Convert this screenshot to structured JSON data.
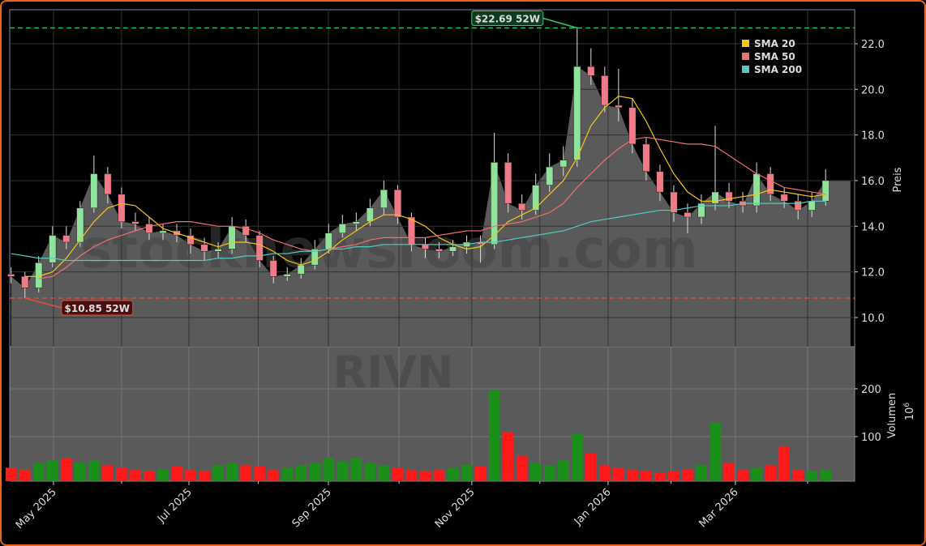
{
  "chart_data": {
    "type": "candlestick",
    "watermarks": [
      "stocknewsroom.com",
      "RIVN"
    ],
    "y_label": "Preis",
    "y2_label": "Volumen",
    "y2_scale": {
      "base": "10",
      "exponent": "6"
    },
    "categories": [
      null,
      null,
      null,
      null,
      null,
      null,
      null,
      null,
      null,
      null,
      null,
      null,
      null,
      null,
      null,
      null,
      null,
      null,
      null,
      null,
      null,
      null,
      null,
      null,
      null,
      null,
      null,
      null,
      null,
      null,
      null,
      null,
      null,
      null,
      null,
      null,
      null,
      null,
      null,
      null,
      null,
      null,
      null,
      null,
      null,
      null,
      null,
      null,
      null,
      null,
      null,
      null,
      null,
      null,
      null,
      null,
      null,
      null,
      null,
      null
    ],
    "xlim": [
      -0.1,
      61.1
    ],
    "xticks": [
      {
        "value": 3.07,
        "label": "May 2025"
      },
      {
        "value": 12.88,
        "label": "Jul 2025"
      },
      {
        "value": 22.98,
        "label": "Sep 2025"
      },
      {
        "value": 33.37,
        "label": "Nov 2025"
      },
      {
        "value": 43.24,
        "label": "Jan 2026"
      },
      {
        "value": 52.46,
        "label": "Mar 2026"
      }
    ],
    "xminorticks": [
      8.0,
      17.9,
      28.1,
      38.3,
      47.8,
      57.7
    ],
    "ylim": [
      8.72,
      23.49
    ],
    "yticks": [
      {
        "value": 10,
        "label": "10.0"
      },
      {
        "value": 12,
        "label": "12.0"
      },
      {
        "value": 14,
        "label": "14.0"
      },
      {
        "value": 16,
        "label": "16.0"
      },
      {
        "value": 18,
        "label": "18.0"
      },
      {
        "value": 20,
        "label": "20.0"
      },
      {
        "value": 22,
        "label": "22.0"
      }
    ],
    "y2lim": [
      6.8,
      288
    ],
    "y2ticks": [
      100,
      200
    ],
    "grid": true,
    "open": [
      11.9,
      11.8,
      11.3,
      12.4,
      13.6,
      13.3,
      14.8,
      16.3,
      15.4,
      14.2,
      14.1,
      13.7,
      13.8,
      13.6,
      13.2,
      12.9,
      13.0,
      14.0,
      13.6,
      12.5,
      11.8,
      11.9,
      12.3,
      13.0,
      13.7,
      14.1,
      14.2,
      14.8,
      15.6,
      14.4,
      13.2,
      13.0,
      12.9,
      13.1,
      13.3,
      13.2,
      16.8,
      15.0,
      14.7,
      15.8,
      16.6,
      16.9,
      21.0,
      20.6,
      19.3,
      19.2,
      17.6,
      16.4,
      15.5,
      14.6,
      14.4,
      15.0,
      15.5,
      15.1,
      14.9,
      16.3,
      15.4,
      15.1,
      14.7,
      15.1
    ],
    "high": [
      12.2,
      12.0,
      12.7,
      14.0,
      14.0,
      15.1,
      17.1,
      16.6,
      15.7,
      14.6,
      14.4,
      14.1,
      14.1,
      13.9,
      13.5,
      13.3,
      14.4,
      14.3,
      13.8,
      12.7,
      12.2,
      12.6,
      13.4,
      14.1,
      14.5,
      14.6,
      15.2,
      16.0,
      15.8,
      14.6,
      13.5,
      13.3,
      13.4,
      13.6,
      13.6,
      18.1,
      17.2,
      15.4,
      16.3,
      17.2,
      17.5,
      22.69,
      21.8,
      21.0,
      20.9,
      19.6,
      17.9,
      16.7,
      15.8,
      15.0,
      15.4,
      18.4,
      15.9,
      15.5,
      16.8,
      16.6,
      15.7,
      15.4,
      15.5,
      16.5
    ],
    "low": [
      11.5,
      10.85,
      11.1,
      12.2,
      13.0,
      13.1,
      14.6,
      15.0,
      13.9,
      13.8,
      13.4,
      13.4,
      13.3,
      12.8,
      12.5,
      12.6,
      12.8,
      13.3,
      12.2,
      11.5,
      11.6,
      11.7,
      12.1,
      12.8,
      13.5,
      13.8,
      14.0,
      14.5,
      14.1,
      12.9,
      12.6,
      12.6,
      12.7,
      12.8,
      12.4,
      13.0,
      14.6,
      14.3,
      14.5,
      15.5,
      16.2,
      16.6,
      20.2,
      19.0,
      18.6,
      17.2,
      16.0,
      15.1,
      14.2,
      13.7,
      14.1,
      14.7,
      14.8,
      14.6,
      14.6,
      15.1,
      14.8,
      14.3,
      14.4,
      14.9
    ],
    "close": [
      11.8,
      11.3,
      12.4,
      13.6,
      13.3,
      14.8,
      16.3,
      15.4,
      14.2,
      14.1,
      13.7,
      13.8,
      13.6,
      13.2,
      12.9,
      13.0,
      14.0,
      13.6,
      12.5,
      11.8,
      11.9,
      12.3,
      13.0,
      13.7,
      14.1,
      14.2,
      14.8,
      15.6,
      14.4,
      13.2,
      13.0,
      12.9,
      13.1,
      13.3,
      13.2,
      16.8,
      15.0,
      14.7,
      15.8,
      16.6,
      16.9,
      21.0,
      20.6,
      19.3,
      19.2,
      17.6,
      16.4,
      15.5,
      14.6,
      14.4,
      15.0,
      15.5,
      15.1,
      14.9,
      16.3,
      15.4,
      15.1,
      14.7,
      15.1,
      16.0
    ],
    "volume": [
      35,
      30,
      45,
      50,
      55,
      45,
      50,
      40,
      35,
      30,
      28,
      32,
      38,
      30,
      28,
      40,
      45,
      40,
      38,
      30,
      35,
      40,
      45,
      55,
      48,
      55,
      45,
      40,
      35,
      30,
      28,
      30,
      35,
      40,
      38,
      198,
      110,
      60,
      45,
      40,
      50,
      105,
      65,
      40,
      35,
      30,
      28,
      25,
      28,
      32,
      40,
      130,
      45,
      30,
      35,
      40,
      80,
      30,
      28,
      30
    ],
    "candle_up_color": "#8fe39a",
    "candle_down_color": "#f07a86",
    "volume_up_color": "#1a8f1a",
    "volume_down_color": "#ff1a1a",
    "area_color": "#5a5a5a",
    "series": [
      {
        "name": "SMA 20",
        "color": "#f5c518",
        "values": [
          null,
          11.8,
          11.8,
          12.0,
          12.6,
          13.4,
          14.2,
          14.8,
          15.0,
          14.9,
          14.4,
          13.9,
          13.7,
          13.5,
          13.3,
          13.1,
          13.3,
          13.3,
          13.2,
          12.9,
          12.5,
          12.3,
          12.5,
          12.9,
          13.4,
          13.8,
          14.2,
          14.5,
          14.5,
          14.3,
          14.0,
          13.5,
          13.2,
          13.0,
          13.1,
          13.6,
          14.2,
          14.5,
          14.8,
          15.4,
          16.0,
          17.0,
          18.4,
          19.2,
          19.7,
          19.6,
          18.6,
          17.4,
          16.3,
          15.5,
          15.1,
          15.1,
          15.2,
          15.3,
          15.4,
          15.6,
          15.5,
          15.4,
          15.3,
          15.4
        ]
      },
      {
        "name": "SMA 50",
        "color": "#f07070",
        "values": [
          null,
          null,
          11.7,
          11.8,
          12.2,
          12.7,
          13.1,
          13.4,
          13.6,
          13.8,
          14.0,
          14.1,
          14.2,
          14.2,
          14.1,
          14.0,
          14.0,
          13.9,
          13.7,
          13.4,
          13.2,
          13.0,
          12.9,
          13.0,
          13.1,
          13.2,
          13.4,
          13.5,
          13.5,
          13.5,
          13.5,
          13.6,
          13.7,
          13.8,
          13.8,
          14.0,
          14.1,
          14.2,
          14.4,
          14.6,
          15.0,
          15.7,
          16.3,
          16.9,
          17.4,
          17.8,
          17.9,
          17.8,
          17.7,
          17.6,
          17.6,
          17.5,
          17.1,
          16.7,
          16.3,
          16.0,
          15.7,
          15.6,
          15.5,
          15.4
        ]
      },
      {
        "name": "SMA 200",
        "color": "#4ecdc4",
        "values": [
          12.8,
          12.7,
          12.6,
          12.6,
          12.5,
          12.5,
          12.5,
          12.5,
          12.5,
          12.5,
          12.5,
          12.5,
          12.5,
          12.5,
          12.5,
          12.6,
          12.6,
          12.7,
          12.7,
          12.8,
          12.8,
          12.9,
          12.9,
          13.0,
          13.0,
          13.1,
          13.1,
          13.2,
          13.2,
          13.2,
          13.2,
          13.2,
          13.2,
          13.2,
          13.3,
          13.3,
          13.4,
          13.5,
          13.6,
          13.7,
          13.8,
          14.0,
          14.2,
          14.3,
          14.4,
          14.5,
          14.6,
          14.7,
          14.7,
          14.8,
          14.9,
          14.9,
          14.9,
          15.0,
          15.0,
          15.0,
          15.0,
          15.0,
          15.1,
          15.1
        ]
      }
    ],
    "annotations": [
      {
        "label": "$22.69 52W",
        "value": 22.69,
        "color": "#2ecc71"
      },
      {
        "label": "$10.85 52W",
        "value": 10.85,
        "color": "#e74c3c"
      }
    ]
  }
}
